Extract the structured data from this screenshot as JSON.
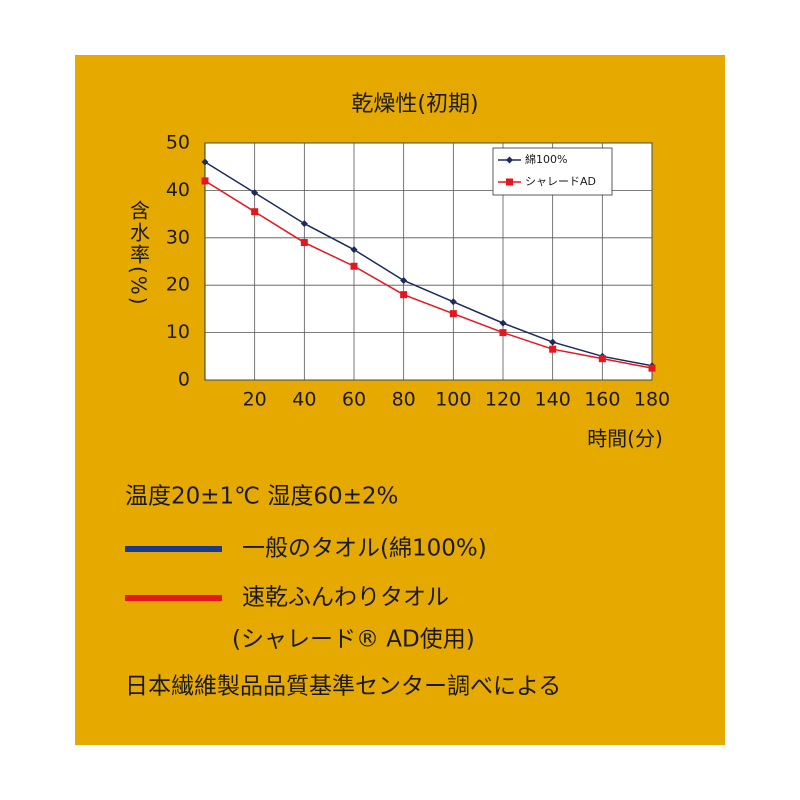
{
  "chart_data": {
    "type": "line",
    "title": "乾燥性(初期)",
    "x_label": "時間(分)",
    "y_label": "含水率(%)",
    "x": [
      0,
      20,
      40,
      60,
      80,
      100,
      120,
      140,
      160,
      180
    ],
    "series": [
      {
        "name": "綿100%",
        "color": "#1c2a5e",
        "marker": "diamond",
        "values": [
          46,
          39.5,
          33,
          27.5,
          21,
          16.5,
          12,
          8,
          5,
          3
        ]
      },
      {
        "name": "シャレードAD",
        "color": "#e8141e",
        "marker": "square",
        "values": [
          42,
          35.5,
          29,
          24,
          18,
          14,
          10,
          6.5,
          4.5,
          2.5
        ]
      }
    ],
    "xlim": [
      0,
      180
    ],
    "xticks": [
      20,
      40,
      60,
      80,
      100,
      120,
      140,
      160,
      180
    ],
    "ylim": [
      0,
      50
    ],
    "yticks": [
      0,
      10,
      20,
      30,
      40,
      50
    ],
    "grid": true,
    "legend": "upper right"
  },
  "notes": {
    "conditions": "温度20±1℃ 湿度60±2%",
    "key": [
      {
        "lines": [
          "一般のタオル(綿100%)"
        ],
        "color": "#1a3a8c"
      },
      {
        "lines": [
          "速乾ふんわりタオル",
          "(シャレード® AD使用)"
        ],
        "color": "#e8141e"
      }
    ],
    "source": "日本繊維製品品質基準センター調べによる"
  }
}
